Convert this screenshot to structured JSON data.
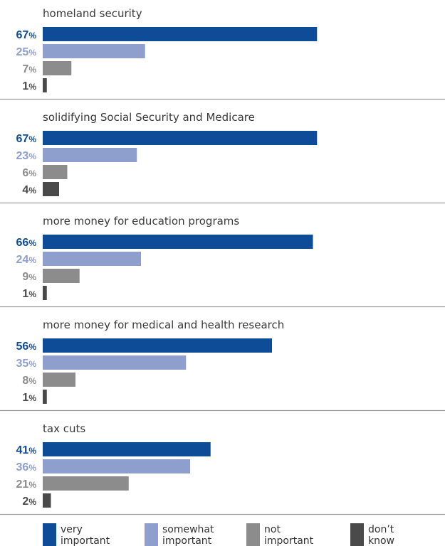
{
  "chart_data": {
    "type": "bar",
    "orientation": "horizontal",
    "xlim": [
      0,
      100
    ],
    "unit": "%",
    "series_names": [
      "very important",
      "somewhat important",
      "not important",
      "don't know"
    ],
    "colors": [
      "#0f4c97",
      "#8e9fce",
      "#8c8c8c",
      "#4a4a4a"
    ],
    "panels": [
      {
        "title": "homeland security",
        "values": [
          67,
          25,
          7,
          1
        ]
      },
      {
        "title": "solidifying Social Security and Medicare",
        "values": [
          67,
          23,
          6,
          4
        ]
      },
      {
        "title": "more money for education programs",
        "values": [
          66,
          24,
          9,
          1
        ]
      },
      {
        "title": "more money for medical and health research",
        "values": [
          56,
          35,
          8,
          1
        ]
      },
      {
        "title": "tax cuts",
        "values": [
          41,
          36,
          21,
          2
        ]
      }
    ],
    "legend": {
      "position": "bottom",
      "items": [
        {
          "line1": "very",
          "line2": "important"
        },
        {
          "line1": "somewhat",
          "line2": "important"
        },
        {
          "line1": "not",
          "line2": "important"
        },
        {
          "line1": "don’t",
          "line2": "know"
        }
      ]
    }
  }
}
